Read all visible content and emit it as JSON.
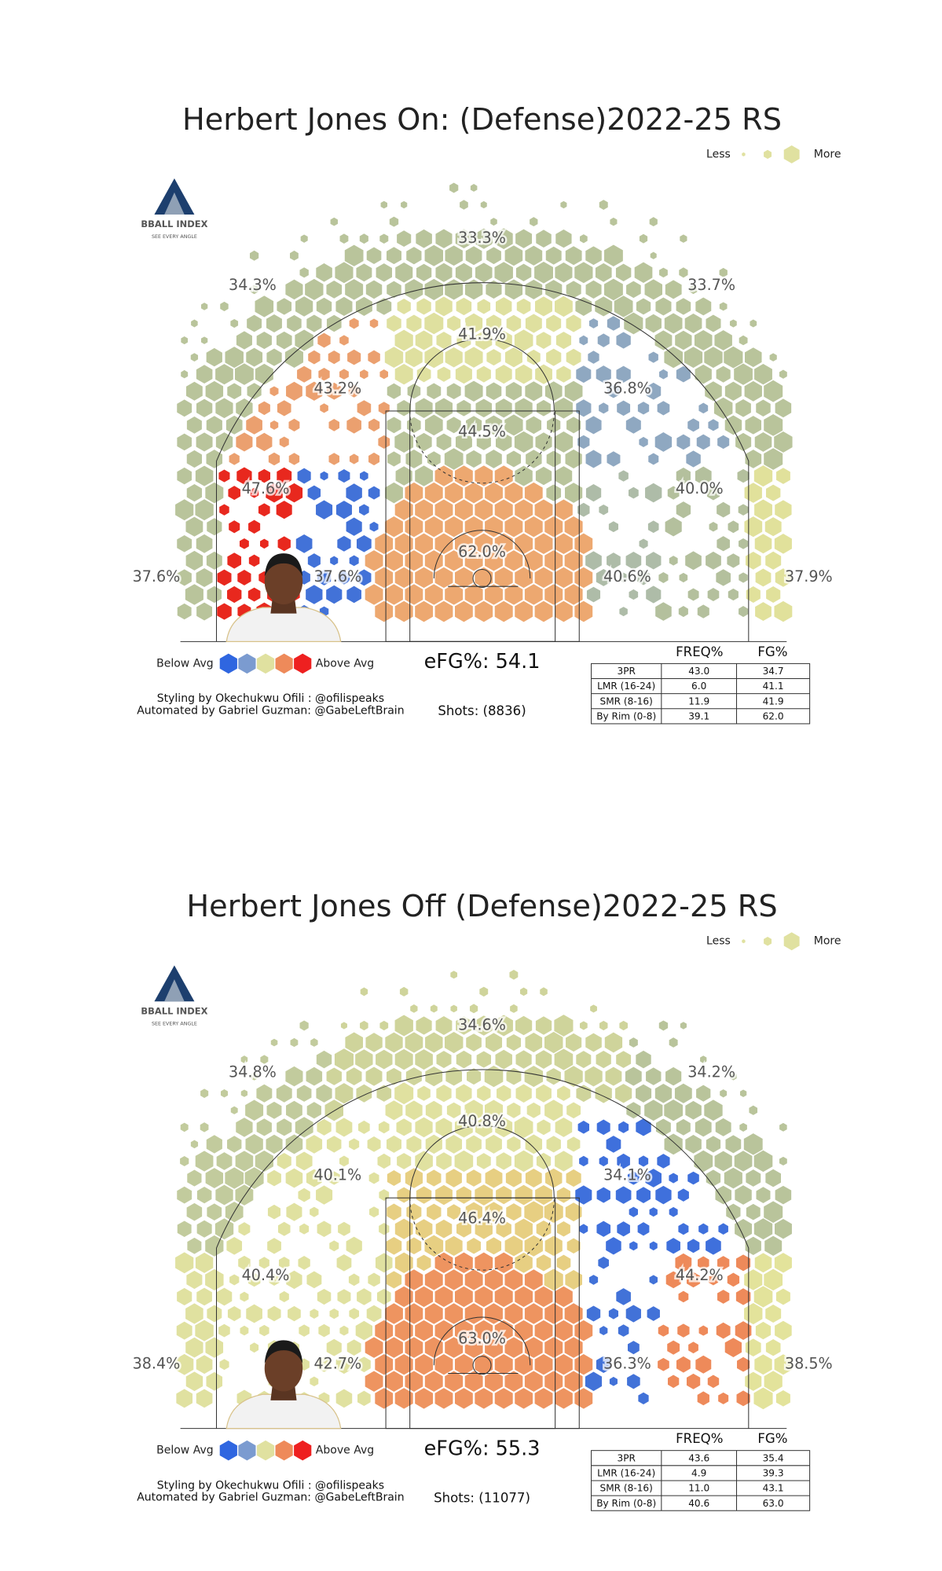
{
  "panels": [
    {
      "title": "Herbert Jones On: (Defense)2022-25 RS",
      "size_legend": {
        "less": "Less",
        "more": "More"
      },
      "logo": {
        "name": "BBALL INDEX",
        "tagline": "SEE EVERY ANGLE"
      },
      "zones": [
        "33.3%",
        "34.3%",
        "33.7%",
        "41.9%",
        "43.2%",
        "36.8%",
        "44.5%",
        "47.6%",
        "40.0%",
        "62.0%",
        "37.6%",
        "37.6%",
        "40.6%",
        "37.9%"
      ],
      "color_legend": {
        "below": "Below Avg",
        "above": "Above Avg"
      },
      "efg": "eFG%: 54.1",
      "shots": "Shots: (8836)",
      "credits": [
        "Styling by Okechukwu Ofili : @ofilispeaks",
        "Automated by Gabriel Guzman: @GabeLeftBrain"
      ],
      "table": {
        "header": [
          "FREQ%",
          "FG%"
        ],
        "rows": [
          [
            "3PR",
            "43.0",
            "34.7"
          ],
          [
            "LMR (16-24)",
            "6.0",
            "41.1"
          ],
          [
            "SMR (8-16)",
            "11.9",
            "41.9"
          ],
          [
            "By Rim (0-8)",
            "39.1",
            "62.0"
          ]
        ]
      }
    },
    {
      "title": "Herbert Jones Off (Defense)2022-25 RS",
      "size_legend": {
        "less": "Less",
        "more": "More"
      },
      "logo": {
        "name": "BBALL INDEX",
        "tagline": "SEE EVERY ANGLE"
      },
      "zones": [
        "34.6%",
        "34.8%",
        "34.2%",
        "40.8%",
        "40.1%",
        "34.1%",
        "46.4%",
        "40.4%",
        "44.2%",
        "63.0%",
        "38.4%",
        "42.7%",
        "36.3%",
        "38.5%"
      ],
      "color_legend": {
        "below": "Below Avg",
        "above": "Above Avg"
      },
      "efg": "eFG%: 55.3",
      "shots": "Shots: (11077)",
      "credits": [
        "Styling by Okechukwu Ofili : @ofilispeaks",
        "Automated by Gabriel Guzman: @GabeLeftBrain"
      ],
      "table": {
        "header": [
          "FREQ%",
          "FG%"
        ],
        "rows": [
          [
            "3PR",
            "43.6",
            "35.4"
          ],
          [
            "LMR (16-24)",
            "4.9",
            "39.3"
          ],
          [
            "SMR (8-16)",
            "11.0",
            "43.1"
          ],
          [
            "By Rim (0-8)",
            "40.6",
            "63.0"
          ]
        ]
      }
    }
  ]
}
